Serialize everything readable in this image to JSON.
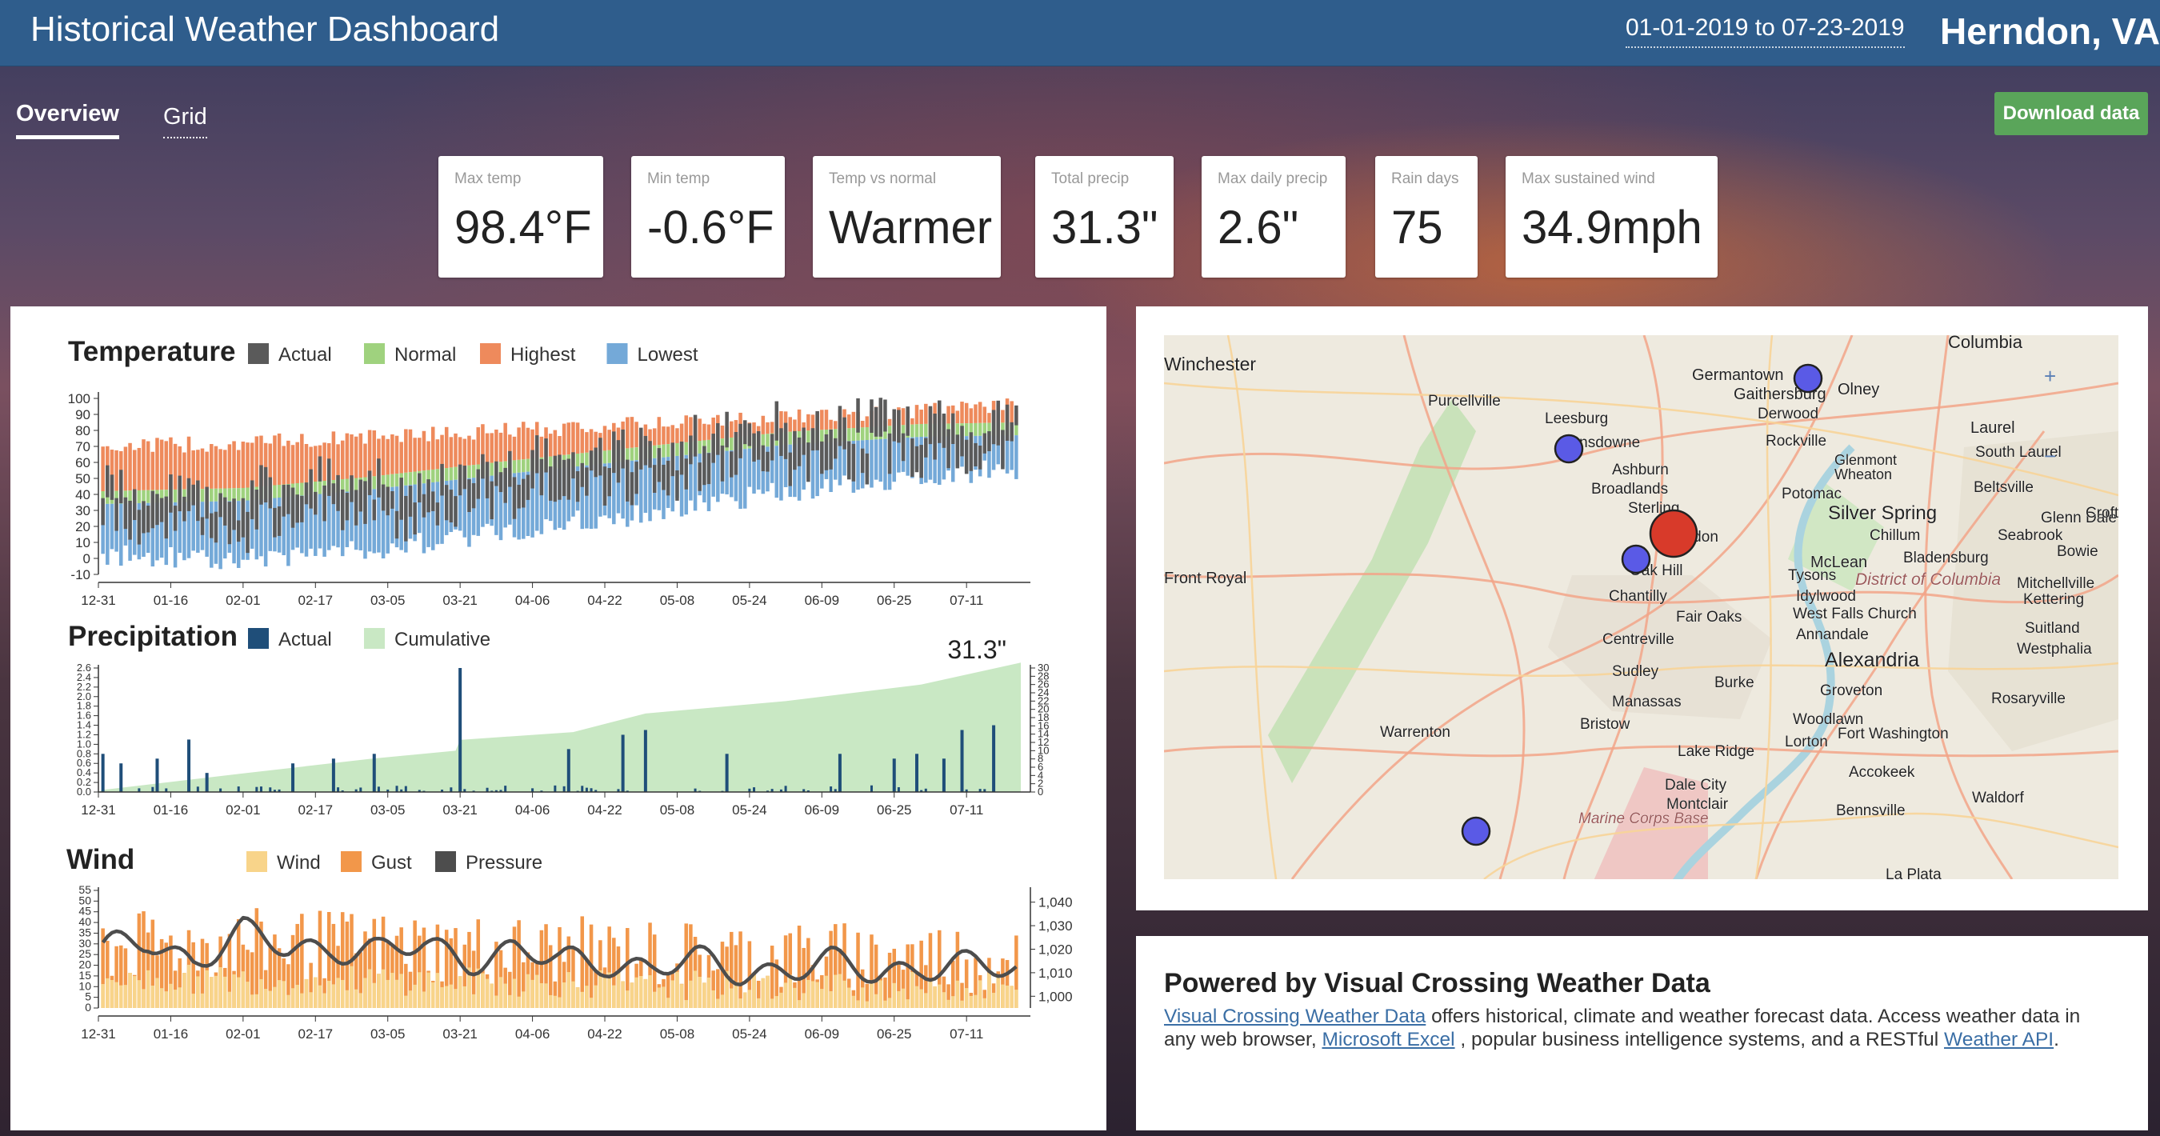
{
  "header": {
    "title": "Historical Weather Dashboard",
    "date_range": "01-01-2019 to 07-23-2019",
    "location": "Herndon, VA"
  },
  "tabs": [
    {
      "label": "Overview",
      "active": true
    },
    {
      "label": "Grid",
      "active": false
    }
  ],
  "download_label": "Download data",
  "kpis": [
    {
      "label": "Max temp",
      "value": "98.4°F"
    },
    {
      "label": "Min temp",
      "value": "-0.6°F"
    },
    {
      "label": "Temp vs normal",
      "value": "Warmer"
    },
    {
      "label": "Total precip",
      "value": "31.3\""
    },
    {
      "label": "Max daily precip",
      "value": "2.6\""
    },
    {
      "label": "Rain days",
      "value": "75"
    },
    {
      "label": "Max sustained wind",
      "value": "34.9mph"
    }
  ],
  "colors": {
    "header_bg": "#2f5d8c",
    "actual": "#5a5a5a",
    "normal": "#9fd27e",
    "highest": "#ee8a5c",
    "lowest": "#74a9d8",
    "precip_actual": "#1f4e79",
    "cumulative": "#c9e8c4",
    "wind": "#f8d48a",
    "gust": "#f2974a",
    "pressure": "#4d4d4d",
    "download_btn": "#5aa55a",
    "marker": "#5a5ae6",
    "marker_main": "#d83a2a"
  },
  "chart_data": [
    {
      "type": "bar",
      "title": "Temperature",
      "legend": [
        "Actual",
        "Normal",
        "Highest",
        "Lowest"
      ],
      "x_tick_labels": [
        "12-31",
        "01-16",
        "02-01",
        "02-17",
        "03-05",
        "03-21",
        "04-06",
        "04-22",
        "05-08",
        "05-24",
        "06-09",
        "06-25",
        "07-11"
      ],
      "y_ticks": [
        -10,
        0,
        10,
        20,
        30,
        40,
        50,
        60,
        70,
        80,
        90,
        100
      ],
      "ylim": [
        -10,
        100
      ],
      "x_range": [
        "2018-12-31",
        "2019-07-23"
      ],
      "series": [
        {
          "name": "Highest",
          "x": [
            "2019-01-01",
            "2019-02-01",
            "2019-03-01",
            "2019-04-01",
            "2019-05-01",
            "2019-06-01",
            "2019-07-01",
            "2019-07-23"
          ],
          "values": [
            70,
            72,
            76,
            80,
            84,
            88,
            92,
            96
          ]
        },
        {
          "name": "Normal",
          "x": [
            "2019-01-01",
            "2019-02-01",
            "2019-03-01",
            "2019-04-01",
            "2019-05-01",
            "2019-06-01",
            "2019-07-01",
            "2019-07-23"
          ],
          "values": [
            38,
            40,
            47,
            57,
            66,
            75,
            80,
            81
          ]
        },
        {
          "name": "Lowest",
          "x": [
            "2019-01-01",
            "2019-02-01",
            "2019-03-01",
            "2019-04-01",
            "2019-05-01",
            "2019-06-01",
            "2019-07-01",
            "2019-07-23"
          ],
          "values": [
            2,
            0,
            5,
            18,
            28,
            42,
            52,
            56
          ]
        },
        {
          "name": "Actual",
          "x": [
            "2019-01-01",
            "2019-01-16",
            "2019-02-01",
            "2019-02-17",
            "2019-03-05",
            "2019-03-21",
            "2019-04-06",
            "2019-04-22",
            "2019-05-08",
            "2019-05-24",
            "2019-06-09",
            "2019-06-25",
            "2019-07-11",
            "2019-07-23"
          ],
          "values": [
            40,
            32,
            28,
            45,
            38,
            42,
            55,
            58,
            62,
            70,
            72,
            76,
            78,
            80
          ]
        }
      ]
    },
    {
      "type": "bar",
      "title": "Precipitation",
      "legend": [
        "Actual",
        "Cumulative"
      ],
      "annotation": "31.3\"",
      "x_tick_labels": [
        "12-31",
        "01-16",
        "02-01",
        "02-17",
        "03-05",
        "03-21",
        "04-06",
        "04-22",
        "05-08",
        "05-24",
        "06-09",
        "06-25",
        "07-11"
      ],
      "y_ticks_left": [
        "0.0",
        "0.2",
        "0.4",
        "0.6",
        "0.8",
        "1.0",
        "1.2",
        "1.4",
        "1.6",
        "1.8",
        "2.0",
        "2.2",
        "2.4",
        "2.6"
      ],
      "y_ticks_right": [
        "0",
        "2",
        "4",
        "6",
        "8",
        "10",
        "12",
        "14",
        "16",
        "18",
        "20",
        "22",
        "24",
        "26",
        "28",
        "30"
      ],
      "ylim_left": [
        0,
        2.6
      ],
      "ylim_right": [
        0,
        30
      ],
      "series": [
        {
          "name": "Actual",
          "x": [
            "2019-01-01",
            "2019-01-05",
            "2019-01-13",
            "2019-01-20",
            "2019-01-24",
            "2019-02-12",
            "2019-02-21",
            "2019-03-02",
            "2019-03-21",
            "2019-04-14",
            "2019-04-26",
            "2019-05-01",
            "2019-05-19",
            "2019-06-13",
            "2019-06-25",
            "2019-06-30",
            "2019-07-06",
            "2019-07-10",
            "2019-07-17"
          ],
          "values": [
            0.8,
            0.6,
            0.7,
            1.1,
            0.4,
            0.6,
            0.7,
            0.8,
            2.6,
            0.9,
            1.2,
            1.3,
            0.8,
            0.8,
            0.7,
            0.8,
            0.7,
            1.3,
            1.4
          ]
        },
        {
          "name": "Cumulative",
          "x": [
            "2019-01-01",
            "2019-02-01",
            "2019-03-01",
            "2019-03-20",
            "2019-03-21",
            "2019-04-15",
            "2019-05-01",
            "2019-06-01",
            "2019-07-01",
            "2019-07-23"
          ],
          "values": [
            0.5,
            4.5,
            8,
            10,
            12.6,
            14.5,
            19,
            22,
            26,
            31.3
          ]
        }
      ]
    },
    {
      "type": "bar",
      "title": "Wind",
      "legend": [
        "Wind",
        "Gust",
        "Pressure"
      ],
      "x_tick_labels": [
        "12-31",
        "01-16",
        "02-01",
        "02-17",
        "03-05",
        "03-21",
        "04-06",
        "04-22",
        "05-08",
        "05-24",
        "06-09",
        "06-25",
        "07-11"
      ],
      "y_ticks_left": [
        "0",
        "5",
        "10",
        "15",
        "20",
        "25",
        "30",
        "35",
        "40",
        "45",
        "50",
        "55"
      ],
      "y_ticks_right": [
        "1,000",
        "1,010",
        "1,020",
        "1,030",
        "1,040"
      ],
      "ylim_left": [
        0,
        55
      ],
      "ylim_right": [
        995,
        1045
      ],
      "series": [
        {
          "name": "Wind",
          "x": [
            "2019-01-01",
            "2019-02-01",
            "2019-03-01",
            "2019-04-01",
            "2019-05-01",
            "2019-06-01",
            "2019-07-01",
            "2019-07-23"
          ],
          "values": [
            14,
            13,
            13,
            12,
            11,
            10,
            10,
            10
          ]
        },
        {
          "name": "Gust",
          "x": [
            "2019-01-01",
            "2019-02-01",
            "2019-03-01",
            "2019-04-01",
            "2019-05-01",
            "2019-06-01",
            "2019-07-01",
            "2019-07-23"
          ],
          "values": [
            28,
            30,
            29,
            27,
            25,
            24,
            24,
            23
          ]
        },
        {
          "name": "Pressure",
          "x": [
            "2019-01-01",
            "2019-01-11",
            "2019-01-21",
            "2019-02-01",
            "2019-02-11",
            "2019-02-21",
            "2019-03-03",
            "2019-03-13",
            "2019-03-23",
            "2019-04-02",
            "2019-04-12",
            "2019-04-22",
            "2019-05-02",
            "2019-05-12",
            "2019-05-22",
            "2019-06-01",
            "2019-06-11",
            "2019-06-21",
            "2019-07-01",
            "2019-07-11",
            "2019-07-21"
          ],
          "values": [
            1018,
            1024,
            1016,
            1026,
            1020,
            1022,
            1018,
            1021,
            1017,
            1019,
            1014,
            1016,
            1012,
            1014,
            1011,
            1012,
            1013,
            1010,
            1014,
            1012,
            1011
          ]
        }
      ]
    }
  ],
  "map": {
    "places": [
      "Columbia",
      "Winchester",
      "Germantown",
      "Olney",
      "Gaithersburg",
      "Derwood",
      "Purcellville",
      "Leesburg",
      "Lansdowne",
      "Rockville",
      "Laurel",
      "Glenmont",
      "Wheaton",
      "South Laurel",
      "Ashburn",
      "Broadlands",
      "Beltsville",
      "Potomac",
      "Silver Spring",
      "Glenn Dale",
      "Sterling",
      "Chillum",
      "Seabrook",
      "Crofton",
      "Herndon",
      "McLean",
      "Bladensburg",
      "Bowie",
      "Oak Hill",
      "Tysons",
      "District of Columbia",
      "Front Royal",
      "Chantilly",
      "Idylwood",
      "Mitchellville",
      "Kettering",
      "West Falls Church",
      "Fair Oaks",
      "Annandale",
      "Suitland",
      "Centreville",
      "Westphalia",
      "Alexandria",
      "Sudley",
      "Burke",
      "Groveton",
      "Rosaryville",
      "Manassas",
      "Woodlawn",
      "Bristow",
      "Fort Washington",
      "Warrenton",
      "Lorton",
      "Lake Ridge",
      "Accokeek",
      "Dale City",
      "Waldorf",
      "Montclair",
      "Bennsville",
      "Marine Corps Base",
      "La Plata"
    ],
    "zoom_labels": [
      "+",
      "−"
    ]
  },
  "info": {
    "title": "Powered by Visual Crossing Weather Data",
    "link1": "Visual Crossing Weather Data",
    "text1": " offers historical, climate and weather forecast data.   Access weather data in any web browser, ",
    "link2": "Microsoft Excel",
    "text2": " , popular business intelligence systems, and a RESTful ",
    "link3": "Weather API",
    "text3": "."
  }
}
